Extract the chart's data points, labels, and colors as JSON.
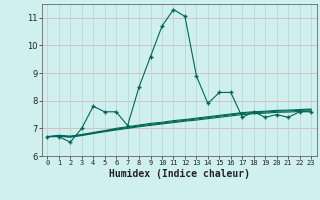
{
  "xlabel": "Humidex (Indice chaleur)",
  "background_color": "#cff0ee",
  "grid_color_h": "#d4b8b8",
  "grid_color_v": "#b8d8d4",
  "line_color": "#006655",
  "xlim": [
    -0.5,
    23.5
  ],
  "ylim": [
    6,
    11.5
  ],
  "yticks": [
    6,
    7,
    8,
    9,
    10,
    11
  ],
  "xticks": [
    0,
    1,
    2,
    3,
    4,
    5,
    6,
    7,
    8,
    9,
    10,
    11,
    12,
    13,
    14,
    15,
    16,
    17,
    18,
    19,
    20,
    21,
    22,
    23
  ],
  "main_x": [
    0,
    1,
    2,
    3,
    4,
    5,
    6,
    7,
    8,
    9,
    10,
    11,
    12,
    13,
    14,
    15,
    16,
    17,
    18,
    19,
    20,
    21,
    22,
    23
  ],
  "main_y": [
    6.7,
    6.7,
    6.5,
    7.0,
    7.8,
    7.6,
    7.6,
    7.1,
    8.5,
    9.6,
    10.7,
    11.3,
    11.05,
    8.9,
    7.9,
    8.3,
    8.3,
    7.4,
    7.6,
    7.4,
    7.5,
    7.4,
    7.6,
    7.6
  ],
  "line2_x": [
    0,
    1,
    2,
    3,
    4,
    5,
    6,
    7,
    8,
    9,
    10,
    11,
    12,
    13,
    14,
    15,
    16,
    17,
    18,
    19,
    20,
    21,
    22,
    23
  ],
  "line2_y": [
    6.7,
    6.75,
    6.72,
    6.78,
    6.85,
    6.92,
    7.0,
    7.06,
    7.12,
    7.18,
    7.22,
    7.28,
    7.32,
    7.37,
    7.42,
    7.47,
    7.52,
    7.57,
    7.6,
    7.62,
    7.65,
    7.66,
    7.68,
    7.7
  ],
  "line3_x": [
    0,
    1,
    2,
    3,
    4,
    5,
    6,
    7,
    8,
    9,
    10,
    11,
    12,
    13,
    14,
    15,
    16,
    17,
    18,
    19,
    20,
    21,
    22,
    23
  ],
  "line3_y": [
    6.7,
    6.73,
    6.7,
    6.76,
    6.83,
    6.9,
    6.97,
    7.03,
    7.09,
    7.14,
    7.19,
    7.24,
    7.29,
    7.34,
    7.39,
    7.44,
    7.49,
    7.54,
    7.57,
    7.59,
    7.62,
    7.63,
    7.65,
    7.67
  ],
  "line4_x": [
    0,
    1,
    2,
    3,
    4,
    5,
    6,
    7,
    8,
    9,
    10,
    11,
    12,
    13,
    14,
    15,
    16,
    17,
    18,
    19,
    20,
    21,
    22,
    23
  ],
  "line4_y": [
    6.7,
    6.71,
    6.68,
    6.74,
    6.81,
    6.88,
    6.94,
    7.0,
    7.06,
    7.11,
    7.16,
    7.21,
    7.26,
    7.3,
    7.35,
    7.4,
    7.45,
    7.5,
    7.53,
    7.55,
    7.58,
    7.59,
    7.61,
    7.63
  ]
}
